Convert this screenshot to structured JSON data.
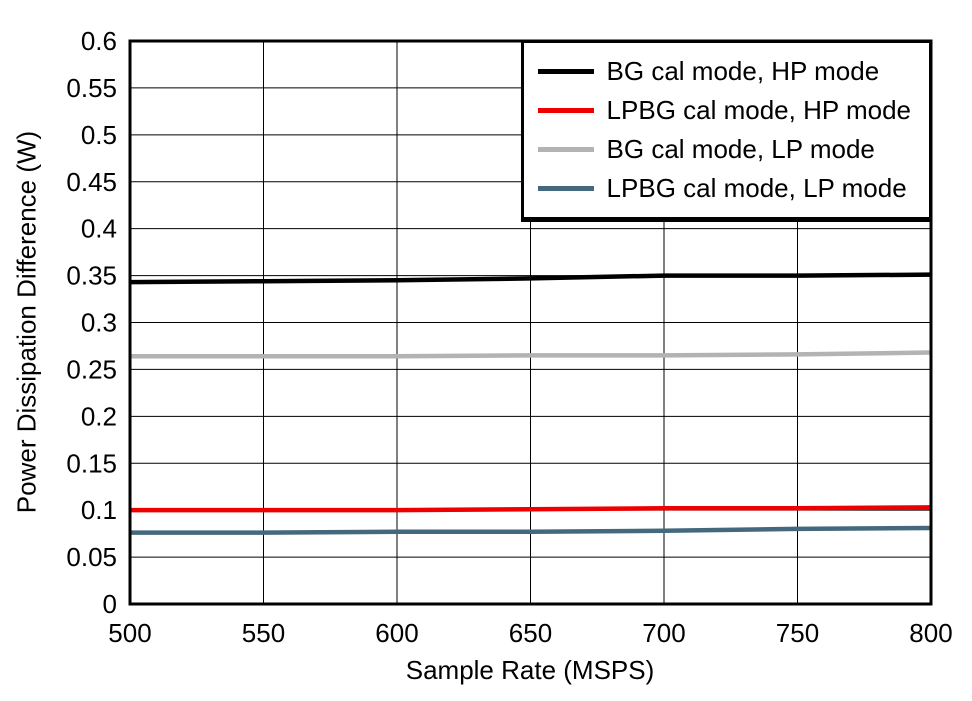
{
  "chart_data": {
    "type": "line",
    "title": "",
    "xlabel": "Sample Rate (MSPS)",
    "ylabel": "Power Dissipation Difference (W)",
    "xlim": [
      500,
      800
    ],
    "ylim": [
      0,
      0.6
    ],
    "xticks": [
      500,
      550,
      600,
      650,
      700,
      750,
      800
    ],
    "yticks": [
      0,
      0.05,
      0.1,
      0.15,
      0.2,
      0.25,
      0.3,
      0.35,
      0.4,
      0.45,
      0.5,
      0.55,
      0.6
    ],
    "grid": true,
    "legend_position": "top-right",
    "x": [
      500,
      550,
      600,
      650,
      700,
      750,
      800
    ],
    "series": [
      {
        "name": "BG cal mode, HP mode",
        "color": "#000000",
        "values": [
          0.343,
          0.344,
          0.345,
          0.347,
          0.35,
          0.35,
          0.351
        ]
      },
      {
        "name": "LPBG cal mode, HP mode",
        "color": "#ee0000",
        "values": [
          0.1,
          0.1,
          0.1,
          0.101,
          0.102,
          0.102,
          0.103
        ]
      },
      {
        "name": "BG cal mode, LP mode",
        "color": "#b3b3b3",
        "values": [
          0.264,
          0.264,
          0.264,
          0.265,
          0.265,
          0.266,
          0.268
        ]
      },
      {
        "name": "LPBG cal mode, LP mode",
        "color": "#44697d",
        "values": [
          0.076,
          0.076,
          0.077,
          0.077,
          0.078,
          0.08,
          0.081
        ]
      }
    ]
  }
}
